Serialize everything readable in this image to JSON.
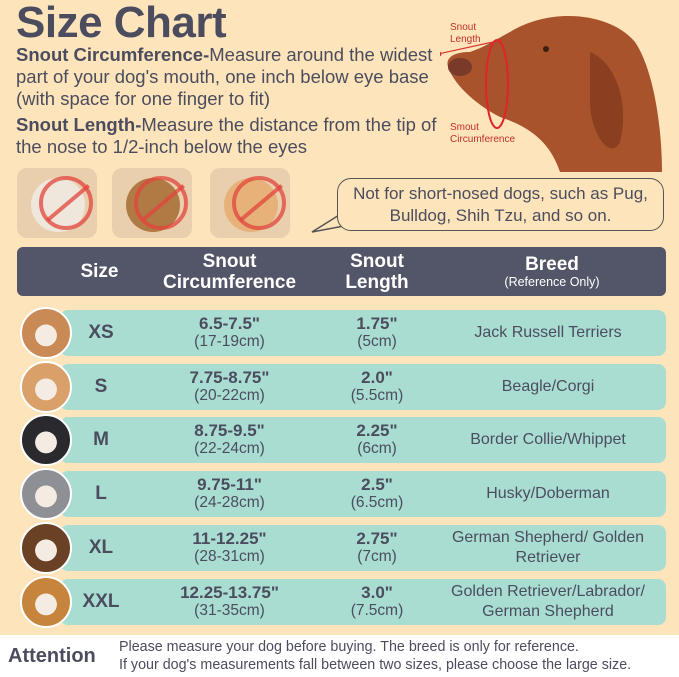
{
  "title": "Size Chart",
  "instructions": {
    "circumference_label": "Snout Circumference-",
    "circumference_text": "Measure around the widest part of your dog's mouth, one inch below eye base (with space for one finger to fit)",
    "length_label": "Snout Length-",
    "length_text": "Measure the distance from the tip of the nose to 1/2-inch below the eyes"
  },
  "diagram": {
    "length_label": "Snout Length",
    "circumference_label": "Smout Circumference"
  },
  "warning": "Not for short-nosed dogs, such as Pug, Bulldog, Shih Tzu, and so on.",
  "table": {
    "headers": {
      "size": "Size",
      "circumference": "Snout Circumference",
      "length": "Snout Length",
      "breed": "Breed",
      "breed_note": "(Reference Only)"
    },
    "rows": [
      {
        "size": "XS",
        "circ_in": "6.5-7.5\"",
        "circ_cm": "(17-19cm)",
        "len_in": "1.75\"",
        "len_cm": "(5cm)",
        "breed": "Jack Russell Terriers",
        "color": "#c98a55"
      },
      {
        "size": "S",
        "circ_in": "7.75-8.75\"",
        "circ_cm": "(20-22cm)",
        "len_in": "2.0\"",
        "len_cm": "(5.5cm)",
        "breed": "Beagle/Corgi",
        "color": "#d9a06a"
      },
      {
        "size": "M",
        "circ_in": "8.75-9.5\"",
        "circ_cm": "(22-24cm)",
        "len_in": "2.25\"",
        "len_cm": "(6cm)",
        "breed": "Border Collie/Whippet",
        "color": "#2a2a2e"
      },
      {
        "size": "L",
        "circ_in": "9.75-11\"",
        "circ_cm": "(24-28cm)",
        "len_in": "2.5\"",
        "len_cm": "(6.5cm)",
        "breed": "Husky/Doberman",
        "color": "#8f9096"
      },
      {
        "size": "XL",
        "circ_in": "11-12.25\"",
        "circ_cm": "(28-31cm)",
        "len_in": "2.75\"",
        "len_cm": "(7cm)",
        "breed": "German Shepherd/ Golden Retriever",
        "color": "#6b4126"
      },
      {
        "size": "XXL",
        "circ_in": "12.25-13.75\"",
        "circ_cm": "(31-35cm)",
        "len_in": "3.0\"",
        "len_cm": "(7.5cm)",
        "breed": "Golden Retriever/Labrador/ German Shepherd",
        "color": "#c7843d"
      }
    ]
  },
  "attention": {
    "label": "Attention",
    "line1": "Please measure your dog before buying. The breed is only for reference.",
    "line2": "If your dog's measurements fall between two sizes, please choose the large size."
  },
  "colors": {
    "background": "#fde4bb",
    "header": "#535568",
    "row": "#a9ddd2",
    "accent_red": "#d8302a"
  }
}
